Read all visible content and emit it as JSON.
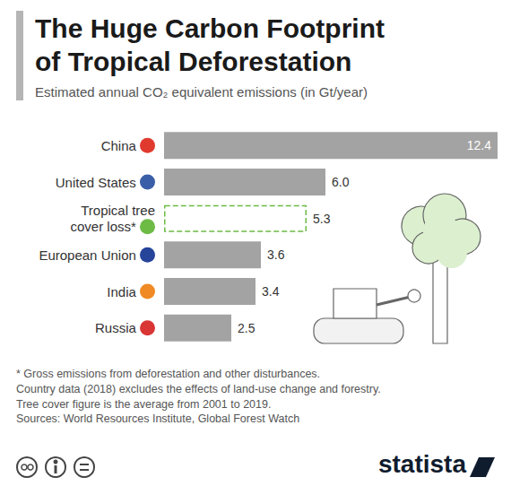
{
  "chart_data": {
    "type": "bar",
    "orientation": "horizontal",
    "title": "The Huge Carbon Footprint of Tropical Deforestation",
    "subtitle": "Estimated annual CO₂ equivalent emissions (in Gt/year)",
    "categories": [
      "China",
      "United States",
      "Tropical tree cover loss*",
      "European Union",
      "India",
      "Russia"
    ],
    "values": [
      12.4,
      6.0,
      5.3,
      3.6,
      3.4,
      2.5
    ],
    "value_labels": [
      "12.4",
      "6.0",
      "5.3",
      "3.6",
      "3.4",
      "2.5"
    ],
    "data_labels": true,
    "color": "#a3a3a3",
    "colors": [
      "#a3a3a3",
      "#a3a3a3",
      "#6dbb45",
      "#a3a3a3",
      "#a3a3a3",
      "#a3a3a3"
    ],
    "xlim": [
      0,
      12.4
    ],
    "tick_labels": "y",
    "grid": false,
    "notes": [
      "* Gross emissions from deforestation and other disturbances.",
      "Country data (2018) excludes the effects of land-use change and forestry.",
      "Tree cover figure is the average from 2001 to 2019."
    ],
    "source": "Sources: World Resources Institute, Global Forest Watch",
    "credit": "statista"
  }
}
